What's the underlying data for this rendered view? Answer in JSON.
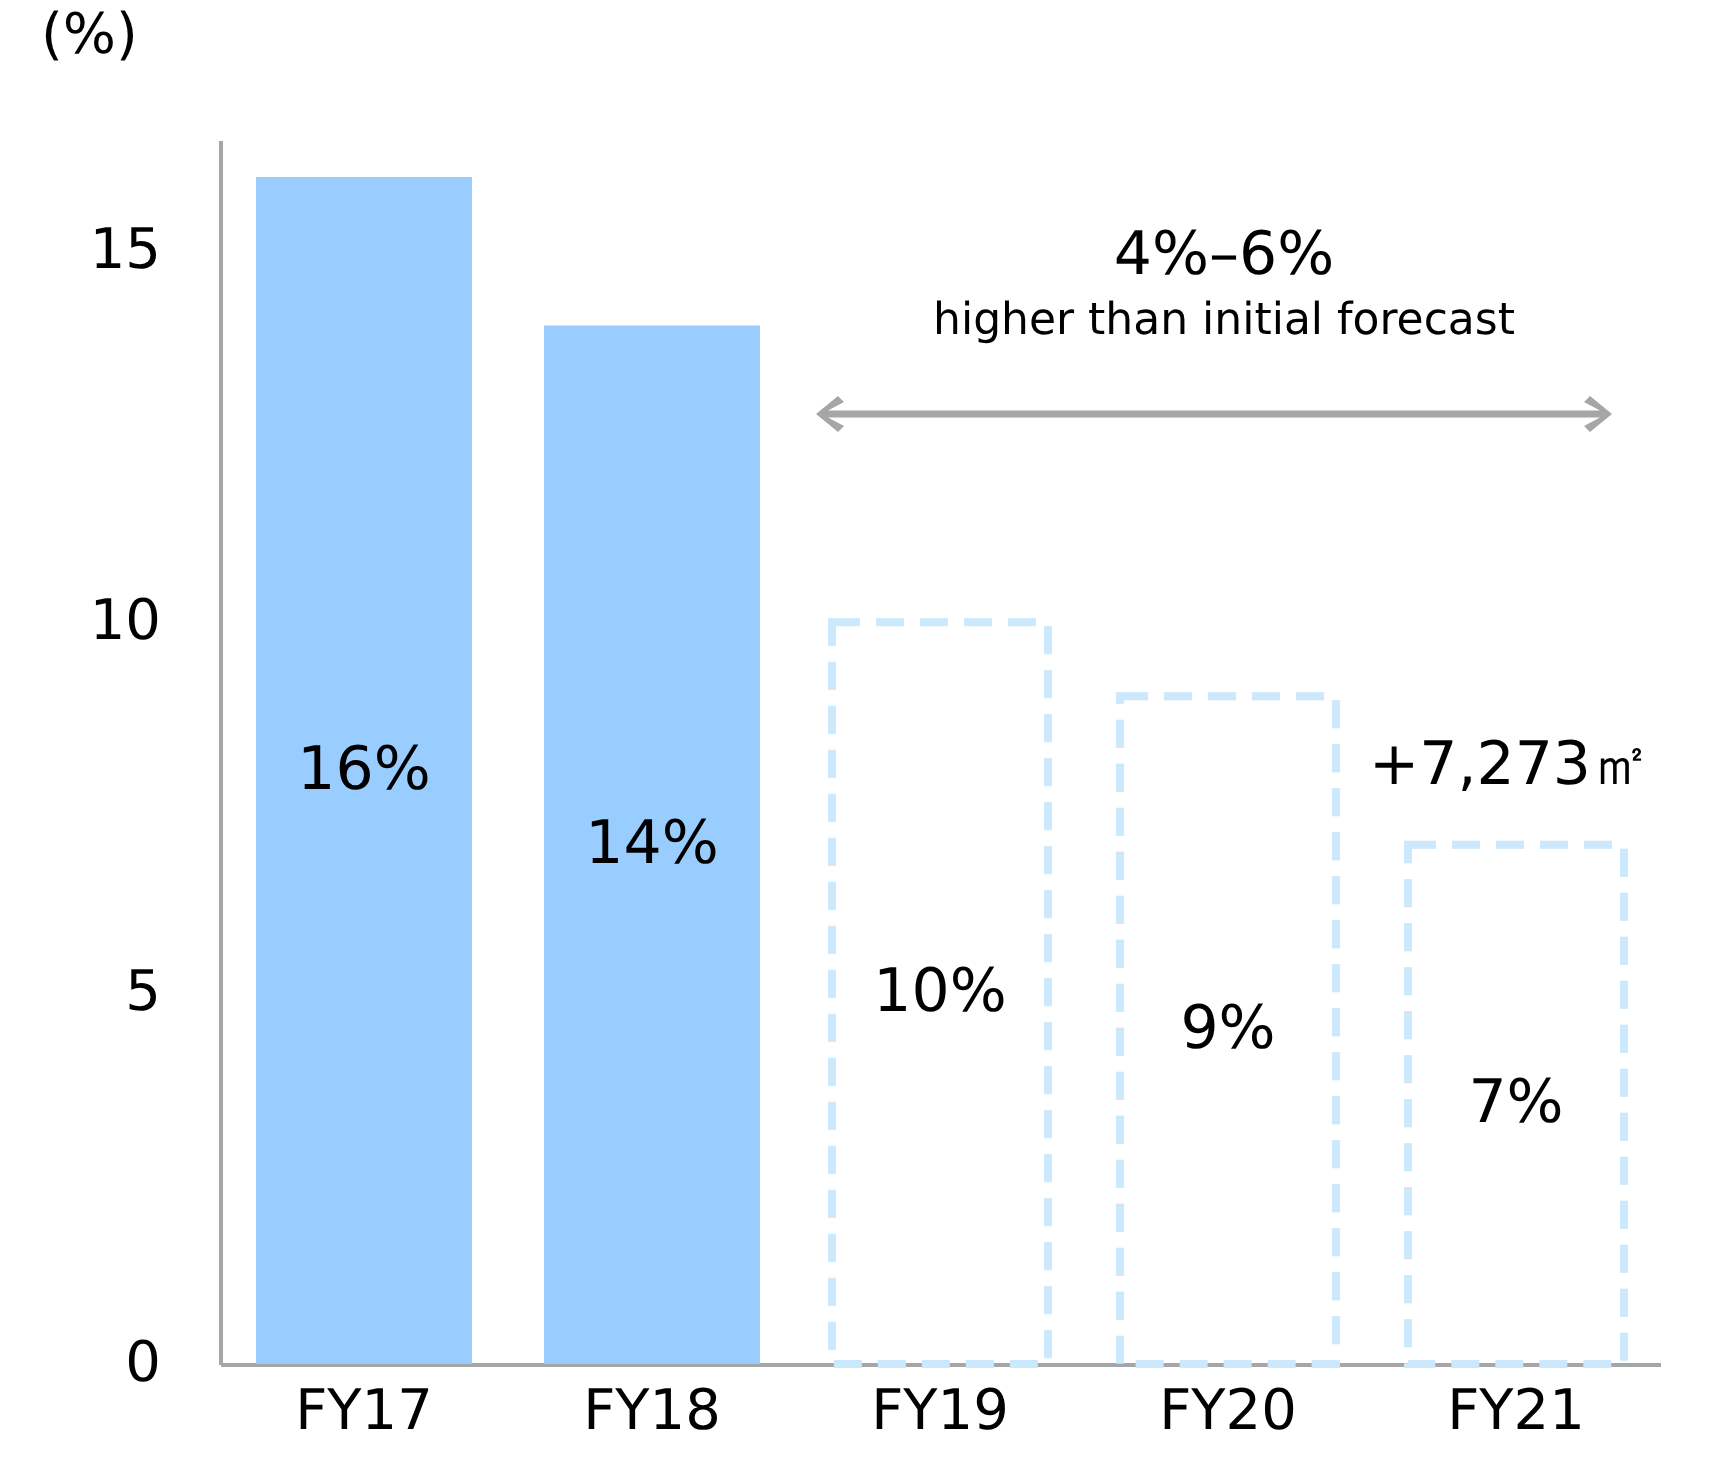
{
  "chart_data": {
    "type": "bar",
    "ylabel": "(%)",
    "categories": [
      "FY17",
      "FY18",
      "FY19",
      "FY20",
      "FY21"
    ],
    "series": [
      {
        "color": "#99ccff",
        "values": [
          16,
          14,
          null,
          null,
          null
        ],
        "value_labels": [
          "16%",
          "14%",
          null,
          null,
          null
        ]
      },
      {
        "color": "#cce8fc",
        "line_style": "dashed",
        "values": [
          null,
          null,
          10,
          9,
          7
        ],
        "value_labels": [
          null,
          null,
          "10%",
          "9%",
          "7%"
        ]
      }
    ],
    "ylim": [
      0,
      16.5
    ],
    "yticks": [
      0,
      5,
      10,
      15
    ],
    "annotations": [
      "4%–6%",
      "higher than initial forecast",
      "+7,273㎡"
    ]
  }
}
